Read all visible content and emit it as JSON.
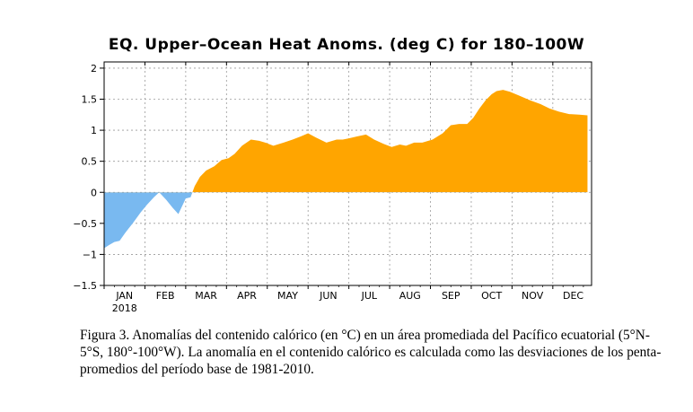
{
  "chart_data": {
    "type": "area",
    "title": "EQ. Upper–Ocean Heat Anoms. (deg C) for 180–100W",
    "xlabel": "",
    "ylabel": "",
    "year_label": "2018",
    "ylim": [
      -1.5,
      2.1
    ],
    "xlim": [
      0,
      11.95
    ],
    "y_ticks": [
      2,
      1.5,
      1,
      0.5,
      0,
      -0.5,
      -1,
      -1.5
    ],
    "y_tick_labels": [
      "2",
      "1.5",
      "1",
      "0.5",
      "0",
      "−0.5",
      "−1",
      "−1.5"
    ],
    "x_tick_labels": [
      "JAN",
      "FEB",
      "MAR",
      "APR",
      "MAY",
      "JUN",
      "JUL",
      "AUG",
      "SEP",
      "OCT",
      "NOV",
      "DEC"
    ],
    "grid": true,
    "colors": {
      "positive": "#ffa500",
      "negative": "#79b9f0"
    },
    "x": [
      0.0,
      0.12,
      0.25,
      0.38,
      0.52,
      0.7,
      0.9,
      1.05,
      1.22,
      1.35,
      1.52,
      1.68,
      1.82,
      2.0,
      2.12,
      2.22,
      2.35,
      2.5,
      2.7,
      2.88,
      3.05,
      3.2,
      3.38,
      3.6,
      3.8,
      3.95,
      4.15,
      4.4,
      4.62,
      4.82,
      5.0,
      5.2,
      5.45,
      5.7,
      5.85,
      6.0,
      6.2,
      6.42,
      6.62,
      6.85,
      7.05,
      7.25,
      7.4,
      7.6,
      7.8,
      8.05,
      8.3,
      8.5,
      8.7,
      8.9,
      9.05,
      9.2,
      9.35,
      9.5,
      9.62,
      9.78,
      9.95,
      10.2,
      10.45,
      10.7,
      10.92,
      11.15,
      11.4,
      11.65,
      11.85
    ],
    "values": [
      -0.9,
      -0.85,
      -0.8,
      -0.78,
      -0.65,
      -0.5,
      -0.32,
      -0.2,
      -0.08,
      0.0,
      -0.12,
      -0.25,
      -0.35,
      -0.1,
      -0.08,
      0.1,
      0.25,
      0.35,
      0.42,
      0.52,
      0.55,
      0.62,
      0.75,
      0.85,
      0.83,
      0.8,
      0.75,
      0.8,
      0.85,
      0.9,
      0.95,
      0.88,
      0.8,
      0.85,
      0.85,
      0.87,
      0.9,
      0.93,
      0.85,
      0.78,
      0.73,
      0.77,
      0.75,
      0.8,
      0.8,
      0.85,
      0.95,
      1.08,
      1.1,
      1.1,
      1.2,
      1.35,
      1.48,
      1.58,
      1.63,
      1.65,
      1.62,
      1.55,
      1.48,
      1.42,
      1.35,
      1.3,
      1.26,
      1.25,
      1.24
    ]
  },
  "caption": "Figura 3. Anomalías del contenido calórico (en °C) en un área promediada del Pacífico ecuatorial (5°N-5°S, 180°-100°W). La anomalía en el contenido calórico es calculada como las desviaciones de los penta-promedios del período base de 1981-2010."
}
